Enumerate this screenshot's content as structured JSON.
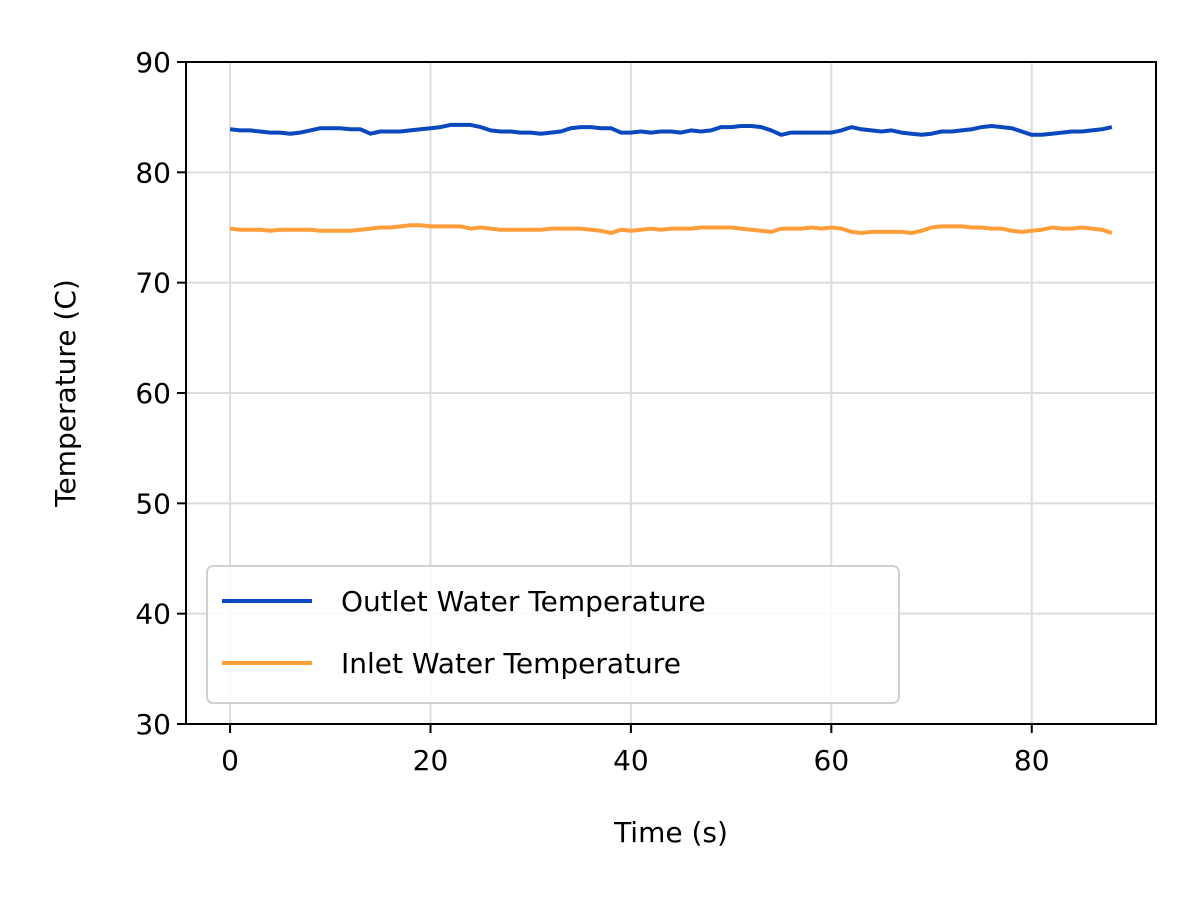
{
  "chart_data": {
    "type": "line",
    "title": "",
    "xlabel": "Time (s)",
    "ylabel": "Temperature (C)",
    "xlim": [
      -4.4,
      92.4
    ],
    "ylim": [
      30,
      90
    ],
    "xticks": [
      "0",
      "20",
      "40",
      "60",
      "80"
    ],
    "yticks": [
      "30",
      "40",
      "50",
      "60",
      "70",
      "80",
      "90"
    ],
    "grid": true,
    "legend_position": "lower-left",
    "x": [
      0,
      1,
      2,
      3,
      4,
      5,
      6,
      7,
      8,
      9,
      10,
      11,
      12,
      13,
      14,
      15,
      16,
      17,
      18,
      19,
      20,
      21,
      22,
      23,
      24,
      25,
      26,
      27,
      28,
      29,
      30,
      31,
      32,
      33,
      34,
      35,
      36,
      37,
      38,
      39,
      40,
      41,
      42,
      43,
      44,
      45,
      46,
      47,
      48,
      49,
      50,
      51,
      52,
      53,
      54,
      55,
      56,
      57,
      58,
      59,
      60,
      61,
      62,
      63,
      64,
      65,
      66,
      67,
      68,
      69,
      70,
      71,
      72,
      73,
      74,
      75,
      76,
      77,
      78,
      79,
      80,
      81,
      82,
      83,
      84,
      85,
      86,
      87,
      88
    ],
    "series": [
      {
        "name": "Outlet Water Temperature",
        "color": "#0a48bd",
        "values": [
          83.9,
          83.8,
          83.8,
          83.7,
          83.6,
          83.6,
          83.5,
          83.6,
          83.8,
          84.0,
          84.0,
          84.0,
          83.9,
          83.9,
          83.5,
          83.7,
          83.7,
          83.7,
          83.8,
          83.9,
          84.0,
          84.1,
          84.3,
          84.3,
          84.3,
          84.1,
          83.8,
          83.7,
          83.7,
          83.6,
          83.6,
          83.5,
          83.6,
          83.7,
          84.0,
          84.1,
          84.1,
          84.0,
          84.0,
          83.6,
          83.6,
          83.7,
          83.6,
          83.7,
          83.7,
          83.6,
          83.8,
          83.7,
          83.8,
          84.1,
          84.1,
          84.2,
          84.2,
          84.1,
          83.8,
          83.4,
          83.6,
          83.6,
          83.6,
          83.6,
          83.6,
          83.8,
          84.1,
          83.9,
          83.8,
          83.7,
          83.8,
          83.6,
          83.5,
          83.4,
          83.5,
          83.7,
          83.7,
          83.8,
          83.9,
          84.1,
          84.2,
          84.1,
          84.0,
          83.7,
          83.4,
          83.4,
          83.5,
          83.6,
          83.7,
          83.7,
          83.8,
          83.9,
          84.1
        ]
      },
      {
        "name": "Inlet Water Temperature",
        "color": "#ff9e3b",
        "values": [
          74.9,
          74.8,
          74.8,
          74.8,
          74.7,
          74.8,
          74.8,
          74.8,
          74.8,
          74.7,
          74.7,
          74.7,
          74.7,
          74.8,
          74.9,
          75.0,
          75.0,
          75.1,
          75.2,
          75.2,
          75.1,
          75.1,
          75.1,
          75.1,
          74.9,
          75.0,
          74.9,
          74.8,
          74.8,
          74.8,
          74.8,
          74.8,
          74.9,
          74.9,
          74.9,
          74.9,
          74.8,
          74.7,
          74.5,
          74.8,
          74.7,
          74.8,
          74.9,
          74.8,
          74.9,
          74.9,
          74.9,
          75.0,
          75.0,
          75.0,
          75.0,
          74.9,
          74.8,
          74.7,
          74.6,
          74.9,
          74.9,
          74.9,
          75.0,
          74.9,
          75.0,
          74.9,
          74.6,
          74.5,
          74.6,
          74.6,
          74.6,
          74.6,
          74.5,
          74.7,
          75.0,
          75.1,
          75.1,
          75.1,
          75.0,
          75.0,
          74.9,
          74.9,
          74.7,
          74.6,
          74.7,
          74.8,
          75.0,
          74.9,
          74.9,
          75.0,
          74.9,
          74.8,
          74.5
        ]
      }
    ]
  }
}
